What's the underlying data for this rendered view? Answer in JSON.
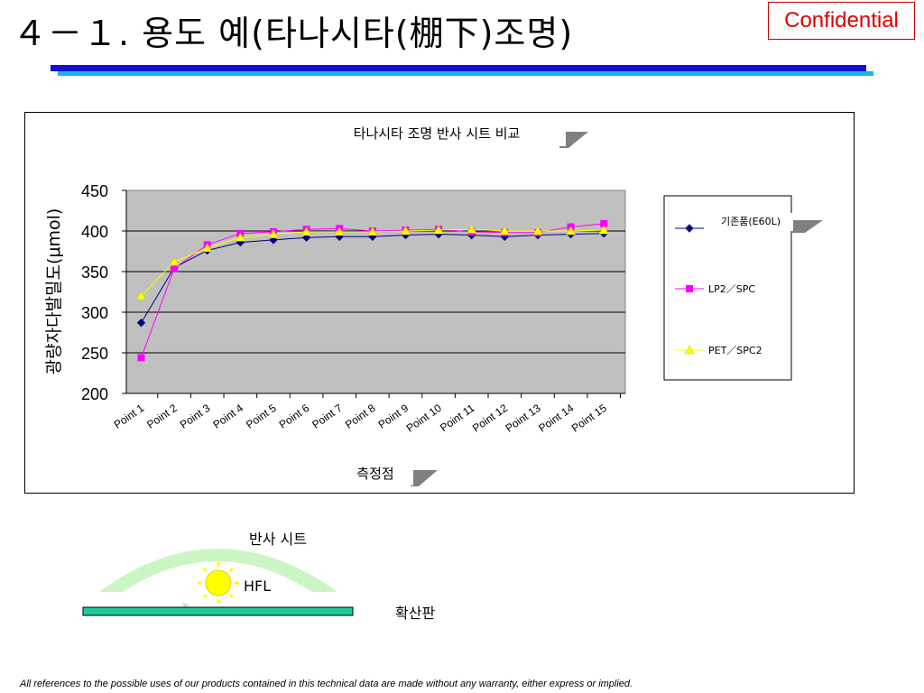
{
  "header": {
    "title": "４－１. 용도 예(타나시타(棚下)조명)",
    "badge": "Confidential"
  },
  "chart_data": {
    "type": "line",
    "title": "타나시타 조명 반사 시트 비교",
    "xlabel": "측정점",
    "ylabel": "광량자다발밀도(μmol)",
    "categories": [
      "Point 1",
      "Point 2",
      "Point 3",
      "Point 4",
      "Point 5",
      "Point 6",
      "Point 7",
      "Point 8",
      "Point 9",
      "Point 10",
      "Point 11",
      "Point 12",
      "Point 13",
      "Point 14",
      "Point 15"
    ],
    "ylim": [
      200,
      450
    ],
    "yticks": [
      "450",
      "400",
      "350",
      "300",
      "250",
      "200"
    ],
    "grid": true,
    "legend_position": "right",
    "series": [
      {
        "name": "기존품(E60L)",
        "color": "#000080",
        "marker": "diamond",
        "values": [
          287,
          355,
          376,
          386,
          389,
          392,
          393,
          393,
          395,
          396,
          395,
          393,
          395,
          396,
          397
        ]
      },
      {
        "name": "LP2／SPC",
        "color": "#ff00ff",
        "marker": "square",
        "values": [
          244,
          354,
          383,
          397,
          399,
          402,
          403,
          400,
          401,
          402,
          399,
          398,
          398,
          405,
          409
        ]
      },
      {
        "name": "PET／SPC2",
        "color": "#ffff00",
        "marker": "triangle",
        "values": [
          320,
          362,
          379,
          392,
          396,
          399,
          399,
          399,
          400,
          401,
          402,
          400,
          400,
          400,
          401
        ]
      }
    ]
  },
  "diagram": {
    "reflector_label": "반사 시트",
    "lamp_label": "HFL",
    "diffuser_label": "확산판"
  },
  "footer": {
    "disclaimer": "All references to the possible uses of our products contained in this technical data are made without any warranty, either express or implied."
  }
}
